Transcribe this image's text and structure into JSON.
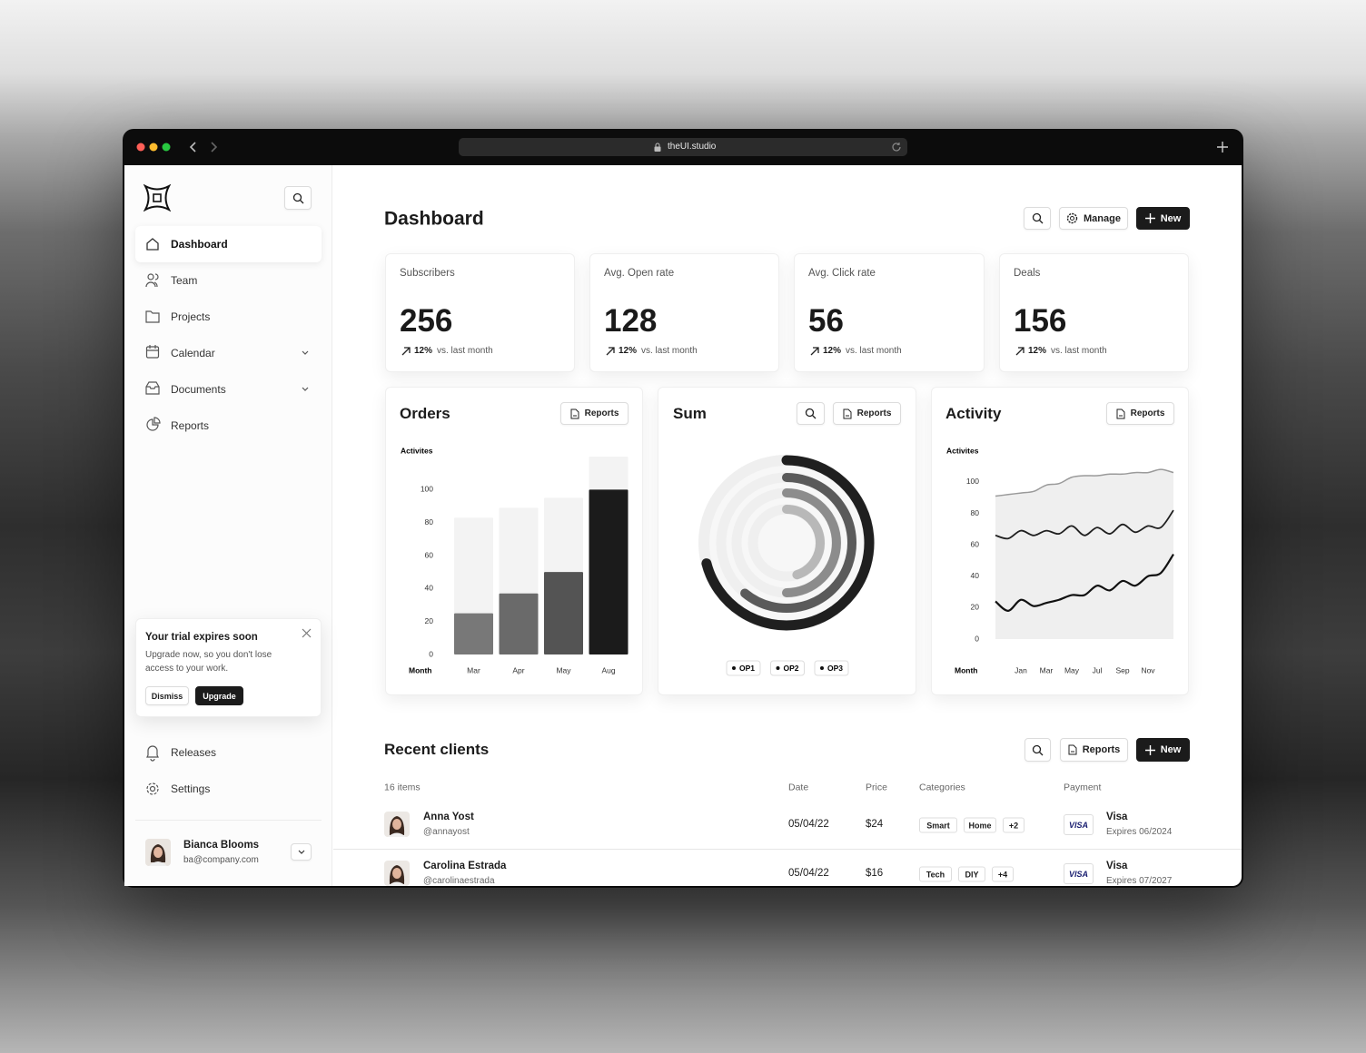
{
  "browser": {
    "url": "theUI.studio"
  },
  "sidebar": {
    "nav": [
      "Dashboard",
      "Team",
      "Projects",
      "Calendar",
      "Documents",
      "Reports"
    ],
    "trial": {
      "title": "Your trial expires soon",
      "text": "Upgrade now, so you don't lose access to your work.",
      "dismiss": "Dismiss",
      "upgrade": "Upgrade"
    },
    "footer_nav": [
      "Releases",
      "Settings"
    ],
    "user": {
      "name": "Bianca Blooms",
      "email": "ba@company.com"
    }
  },
  "header": {
    "title": "Dashboard",
    "manage": "Manage",
    "new": "New"
  },
  "stats": [
    {
      "label": "Subscribers",
      "value": 256,
      "change": "12%",
      "note": "vs. last month"
    },
    {
      "label": "Avg. Open rate",
      "value": 128,
      "change": "12%",
      "note": "vs. last month"
    },
    {
      "label": "Avg. Click rate",
      "value": 56,
      "change": "12%",
      "note": "vs. last month"
    },
    {
      "label": "Deals",
      "value": 156,
      "change": "12%",
      "note": "vs. last month"
    }
  ],
  "chart_cards": [
    {
      "button": "Reports"
    },
    {
      "button": "Reports"
    },
    {
      "button": "Reports"
    }
  ],
  "chart_data": [
    {
      "type": "bar",
      "title": "Orders",
      "y_label": "Activites",
      "x_label": "Month",
      "categories": [
        "Mar",
        "Apr",
        "May",
        "Aug"
      ],
      "series": [
        {
          "color": "#f3f3f3",
          "values": [
            83,
            89,
            95,
            120
          ]
        },
        {
          "colors": [
            "#787878",
            "#6a6a6a",
            "#545454",
            "#1b1b1b"
          ],
          "values": [
            25,
            37,
            50,
            100
          ]
        }
      ],
      "ylim": [
        0,
        120
      ],
      "yticks": [
        0,
        20,
        40,
        60,
        80,
        100
      ]
    },
    {
      "type": "radial",
      "title": "Sum",
      "values": [
        71,
        61,
        50,
        45
      ],
      "colors": [
        "#1f1f1f",
        "#5a5a5a",
        "#8c8c8c",
        "#b8b8b8"
      ],
      "ylim": [
        0,
        100
      ],
      "legend": [
        "OP1",
        "OP2",
        "OP3"
      ]
    },
    {
      "type": "line",
      "title": "Activity",
      "y_label": "Activites",
      "x_label": "Month",
      "categories": [
        null,
        null,
        "Jan",
        null,
        "Mar",
        null,
        "May",
        null,
        "Jul",
        null,
        "Sep",
        null,
        "Nov",
        null,
        null
      ],
      "series": [
        {
          "color": "#9a9a9a",
          "fill": "#efefef",
          "values": [
            91,
            92,
            93,
            94,
            98,
            99,
            103,
            104,
            104,
            105,
            105,
            106,
            106,
            108,
            106
          ]
        },
        {
          "color": "#1f1f1f",
          "values": [
            66,
            64,
            69,
            66,
            69,
            67,
            72,
            66,
            71,
            67,
            73,
            68,
            72,
            71,
            82
          ]
        },
        {
          "color": "#111111",
          "values": [
            24,
            18,
            25,
            21,
            23,
            25,
            28,
            28,
            34,
            31,
            37,
            34,
            40,
            42,
            54
          ]
        }
      ],
      "ylim": [
        0,
        115
      ],
      "yticks": [
        0,
        20,
        40,
        60,
        80,
        100
      ]
    }
  ],
  "clients": {
    "title": "Recent clients",
    "reports": "Reports",
    "new": "New",
    "count": "16 items",
    "columns": [
      "Date",
      "Price",
      "Categories",
      "Payment"
    ],
    "rows": [
      {
        "name": "Anna Yost",
        "handle": "@annayost",
        "date": "05/04/22",
        "price": "$24",
        "categories": [
          "Smart",
          "Home",
          "+2"
        ],
        "card": "VISA",
        "payment": "Visa",
        "expires": "Expires 06/2024"
      },
      {
        "name": "Carolina Estrada",
        "handle": "@carolinaestrada",
        "date": "05/04/22",
        "price": "$16",
        "categories": [
          "Tech",
          "DIY",
          "+4"
        ],
        "card": "VISA",
        "payment": "Visa",
        "expires": "Expires 07/2027"
      }
    ]
  }
}
